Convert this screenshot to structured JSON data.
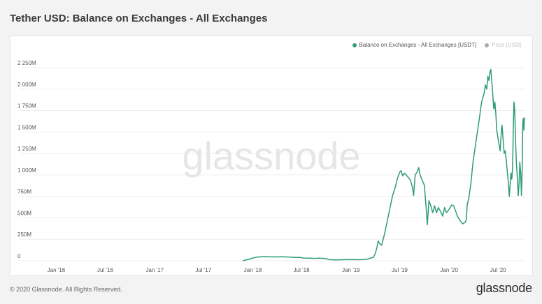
{
  "page": {
    "title": "Tether USD: Balance on Exchanges - All Exchanges",
    "copyright": "© 2020 Glassnode. All Rights Reserved.",
    "brand": "glassnode",
    "watermark": "glassnode"
  },
  "legend": {
    "items": [
      {
        "label": "Balance on Exchanges - All Exchanges [USDT]",
        "color": "#2e9c75"
      },
      {
        "label": "Price [USD]",
        "color": "#a9a9a9"
      }
    ]
  },
  "colors": {
    "series": "#2e9c75",
    "grid": "#efefef",
    "tick": "#555555",
    "watermark": "#e6e6e6"
  },
  "chart_data": {
    "type": "line",
    "title": "Tether USD: Balance on Exchanges - All Exchanges",
    "xlabel": "",
    "ylabel": "",
    "grid": true,
    "legend_position": "top-right",
    "xlim": [
      "2015-11-01",
      "2020-10-10"
    ],
    "ylim": [
      0,
      2250
    ],
    "y_unit": "M",
    "y_ticks": [
      0,
      250,
      500,
      750,
      1000,
      1250,
      1500,
      1750,
      2000,
      2250
    ],
    "y_tick_labels": [
      "0",
      "250M",
      "500M",
      "750M",
      "1 000M",
      "1 250M",
      "1 500M",
      "1 750M",
      "2 000M",
      "2 250M"
    ],
    "x_ticks": [
      "2016-01-01",
      "2016-07-01",
      "2017-01-01",
      "2017-07-01",
      "2018-01-01",
      "2018-07-01",
      "2019-01-01",
      "2019-07-01",
      "2020-01-01",
      "2020-07-01"
    ],
    "x_tick_labels": [
      "Jan '16",
      "Jul '16",
      "Jan '17",
      "Jul '17",
      "Jan '18",
      "Jul '18",
      "Jan '19",
      "Jul '19",
      "Jan '20",
      "Jul '20"
    ],
    "series": [
      {
        "name": "Balance on Exchanges - All Exchanges [USDT]",
        "points": [
          [
            "2017-11-25",
            0
          ],
          [
            "2017-12-20",
            20
          ],
          [
            "2018-01-05",
            35
          ],
          [
            "2018-01-20",
            45
          ],
          [
            "2018-02-15",
            48
          ],
          [
            "2018-03-20",
            45
          ],
          [
            "2018-04-20",
            46
          ],
          [
            "2018-05-20",
            42
          ],
          [
            "2018-06-10",
            38
          ],
          [
            "2018-06-25",
            40
          ],
          [
            "2018-07-08",
            32
          ],
          [
            "2018-08-01",
            30
          ],
          [
            "2018-08-20",
            28
          ],
          [
            "2018-09-05",
            30
          ],
          [
            "2018-10-01",
            25
          ],
          [
            "2018-10-10",
            15
          ],
          [
            "2018-11-01",
            10
          ],
          [
            "2018-12-01",
            12
          ],
          [
            "2019-01-01",
            14
          ],
          [
            "2019-02-01",
            12
          ],
          [
            "2019-03-01",
            18
          ],
          [
            "2019-03-25",
            40
          ],
          [
            "2019-04-01",
            80
          ],
          [
            "2019-04-08",
            160
          ],
          [
            "2019-04-12",
            230
          ],
          [
            "2019-04-18",
            200
          ],
          [
            "2019-04-25",
            180
          ],
          [
            "2019-05-05",
            300
          ],
          [
            "2019-05-15",
            450
          ],
          [
            "2019-05-25",
            600
          ],
          [
            "2019-06-05",
            760
          ],
          [
            "2019-06-15",
            860
          ],
          [
            "2019-06-22",
            950
          ],
          [
            "2019-07-01",
            1030
          ],
          [
            "2019-07-06",
            1050
          ],
          [
            "2019-07-12",
            990
          ],
          [
            "2019-07-20",
            1020
          ],
          [
            "2019-08-01",
            975
          ],
          [
            "2019-08-10",
            940
          ],
          [
            "2019-08-18",
            850
          ],
          [
            "2019-08-22",
            760
          ],
          [
            "2019-08-28",
            1000
          ],
          [
            "2019-09-05",
            1040
          ],
          [
            "2019-09-10",
            1085
          ],
          [
            "2019-09-15",
            1000
          ],
          [
            "2019-09-20",
            960
          ],
          [
            "2019-10-01",
            880
          ],
          [
            "2019-10-08",
            600
          ],
          [
            "2019-10-12",
            420
          ],
          [
            "2019-10-18",
            700
          ],
          [
            "2019-10-25",
            640
          ],
          [
            "2019-11-01",
            560
          ],
          [
            "2019-11-08",
            640
          ],
          [
            "2019-11-15",
            560
          ],
          [
            "2019-11-22",
            620
          ],
          [
            "2019-12-01",
            570
          ],
          [
            "2019-12-08",
            520
          ],
          [
            "2019-12-15",
            620
          ],
          [
            "2019-12-22",
            560
          ],
          [
            "2020-01-01",
            600
          ],
          [
            "2020-01-10",
            650
          ],
          [
            "2020-01-18",
            640
          ],
          [
            "2020-01-25",
            580
          ],
          [
            "2020-02-01",
            520
          ],
          [
            "2020-02-10",
            470
          ],
          [
            "2020-02-20",
            430
          ],
          [
            "2020-03-01",
            450
          ],
          [
            "2020-03-05",
            480
          ],
          [
            "2020-03-08",
            650
          ],
          [
            "2020-03-12",
            700
          ],
          [
            "2020-03-15",
            740
          ],
          [
            "2020-03-22",
            900
          ],
          [
            "2020-03-30",
            1150
          ],
          [
            "2020-04-08",
            1350
          ],
          [
            "2020-04-15",
            1500
          ],
          [
            "2020-04-22",
            1650
          ],
          [
            "2020-05-01",
            1850
          ],
          [
            "2020-05-10",
            1950
          ],
          [
            "2020-05-15",
            2050
          ],
          [
            "2020-05-20",
            2000
          ],
          [
            "2020-05-24",
            2150
          ],
          [
            "2020-05-28",
            2100
          ],
          [
            "2020-06-01",
            2200
          ],
          [
            "2020-06-04",
            2230
          ],
          [
            "2020-06-07",
            2120
          ],
          [
            "2020-06-11",
            1950
          ],
          [
            "2020-06-15",
            1770
          ],
          [
            "2020-06-19",
            1850
          ],
          [
            "2020-06-23",
            1700
          ],
          [
            "2020-06-26",
            1530
          ],
          [
            "2020-07-01",
            1420
          ],
          [
            "2020-07-05",
            1350
          ],
          [
            "2020-07-09",
            1280
          ],
          [
            "2020-07-13",
            1500
          ],
          [
            "2020-07-16",
            1580
          ],
          [
            "2020-07-20",
            1400
          ],
          [
            "2020-07-24",
            1250
          ],
          [
            "2020-07-28",
            1280
          ],
          [
            "2020-08-01",
            1150
          ],
          [
            "2020-08-05",
            1020
          ],
          [
            "2020-08-09",
            880
          ],
          [
            "2020-08-12",
            750
          ],
          [
            "2020-08-15",
            900
          ],
          [
            "2020-08-18",
            1020
          ],
          [
            "2020-08-21",
            950
          ],
          [
            "2020-08-24",
            1080
          ],
          [
            "2020-08-27",
            1600
          ],
          [
            "2020-08-29",
            1850
          ],
          [
            "2020-09-01",
            1760
          ],
          [
            "2020-09-04",
            1400
          ],
          [
            "2020-09-07",
            1150
          ],
          [
            "2020-09-10",
            1000
          ],
          [
            "2020-09-14",
            760
          ],
          [
            "2020-09-17",
            900
          ],
          [
            "2020-09-20",
            1150
          ],
          [
            "2020-09-23",
            1020
          ],
          [
            "2020-09-26",
            760
          ],
          [
            "2020-09-29",
            1100
          ],
          [
            "2020-10-01",
            1600
          ],
          [
            "2020-10-03",
            1660
          ],
          [
            "2020-10-05",
            1520
          ],
          [
            "2020-10-07",
            1670
          ]
        ]
      }
    ]
  }
}
